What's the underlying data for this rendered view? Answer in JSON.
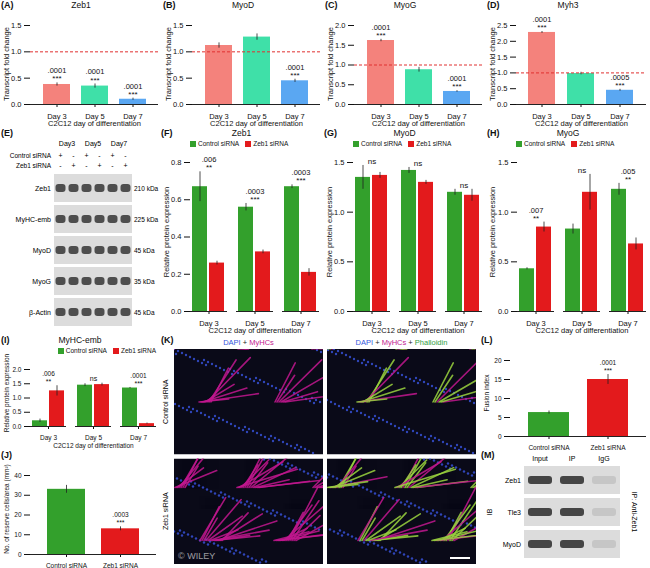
{
  "chart_data": [
    {
      "panel": "(A)",
      "type": "bar",
      "title": "Zeb1",
      "x_label": "C2C12 day of differentiation",
      "y_label": "Transcript fold change",
      "categories": [
        "Day 3",
        "Day 5",
        "Day 7"
      ],
      "values": [
        0.38,
        0.35,
        0.1
      ],
      "errors": [
        0.03,
        0.04,
        0.02
      ],
      "colors": [
        "#f4827c",
        "#3fe0a8",
        "#5aa7f2"
      ],
      "p_labels": [
        ".0001",
        ".0001",
        ".0001"
      ],
      "stars": [
        "***",
        "***",
        "***"
      ],
      "reference_line": 1,
      "ylim": [
        0,
        1.5
      ],
      "yticks": [
        {
          "value": 0,
          "label": "0.0"
        },
        0.5,
        {
          "value": 1,
          "label": "1.0"
        },
        1.5
      ]
    },
    {
      "panel": "(B)",
      "type": "bar",
      "title": "MyoD",
      "x_label": "C2C12 day of differentiation",
      "y_label": "Transcript fold change",
      "categories": [
        "Day 3",
        "Day 5",
        "Day 7"
      ],
      "values": [
        1.12,
        1.28,
        0.45
      ],
      "errors": [
        0.05,
        0.06,
        0.03
      ],
      "colors": [
        "#f4827c",
        "#3fe0a8",
        "#5aa7f2"
      ],
      "p_labels": [
        null,
        null,
        ".0001"
      ],
      "stars": [
        null,
        null,
        "***"
      ],
      "reference_line": 1,
      "ylim": [
        0,
        1.5
      ],
      "yticks": [
        {
          "value": 0,
          "label": "0.0"
        },
        0.5,
        {
          "value": 1,
          "label": "1.0"
        },
        1.5
      ]
    },
    {
      "panel": "(C)",
      "type": "bar",
      "title": "MyoG",
      "x_label": "C2C12 day of differentiation",
      "y_label": "Transcript fold change",
      "categories": [
        "Day 3",
        "Day 5",
        "Day 7"
      ],
      "values": [
        1.62,
        0.88,
        0.33
      ],
      "errors": [
        0.03,
        0.06,
        0.02
      ],
      "colors": [
        "#f4827c",
        "#3fe0a8",
        "#5aa7f2"
      ],
      "p_labels": [
        ".0001",
        null,
        ".0001"
      ],
      "stars": [
        "***",
        null,
        "***"
      ],
      "reference_line": 1,
      "ylim": [
        0,
        2
      ],
      "yticks": [
        {
          "value": 0,
          "label": "0.0"
        },
        0.5,
        {
          "value": 1,
          "label": "1.0"
        },
        1.5,
        {
          "value": 2,
          "label": "2.0"
        }
      ]
    },
    {
      "panel": "(D)",
      "type": "bar",
      "title": "Myh3",
      "x_label": "C2C12 day of differentiation",
      "y_label": "Transcript fold change",
      "categories": [
        "Day 3",
        "Day 5",
        "Day 7"
      ],
      "values": [
        2.28,
        0.98,
        0.45
      ],
      "errors": [
        0.03,
        0.04,
        0.03
      ],
      "colors": [
        "#f4827c",
        "#3fe0a8",
        "#5aa7f2"
      ],
      "p_labels": [
        ".0001",
        null,
        ".0005"
      ],
      "stars": [
        "***",
        null,
        "***"
      ],
      "reference_line": 1,
      "ylim": [
        0,
        2.5
      ],
      "yticks": [
        {
          "value": 0,
          "label": "0.0"
        },
        0.5,
        {
          "value": 1,
          "label": "1.0"
        },
        1.5,
        {
          "value": 2,
          "label": "2.0"
        },
        2.5
      ]
    },
    {
      "panel": "(F)",
      "type": "bar",
      "title": "Zeb1",
      "x_label": "C2C12 day of differentiation",
      "y_label": "Relative protein expression",
      "categories": [
        "Day 3",
        "Day 5",
        "Day 7"
      ],
      "legend": "top-left",
      "series": [
        {
          "name": "Control siRNA",
          "color": "#33a02c",
          "values": [
            0.67,
            0.56,
            0.67
          ],
          "errors": [
            0.08,
            0.02,
            0.01
          ]
        },
        {
          "name": "Zeb1 siRNA",
          "color": "#e31a1c",
          "values": [
            0.26,
            0.32,
            0.21
          ],
          "errors": [
            0.01,
            0.01,
            0.02
          ]
        }
      ],
      "p_labels": [
        ".006",
        ".0003",
        ".0003"
      ],
      "stars": [
        "**",
        "***",
        "***"
      ],
      "ylim": [
        0,
        0.8
      ],
      "yticks": [
        {
          "value": 0,
          "label": "0.0"
        },
        0.2,
        0.4,
        0.6,
        0.8
      ]
    },
    {
      "panel": "(G)",
      "type": "bar",
      "title": "MyoD",
      "x_label": "C2C12 day of differentiation",
      "y_label": "Relative protein expression",
      "categories": [
        "Day 3",
        "Day 5",
        "Day 7"
      ],
      "legend": "top-left",
      "series": [
        {
          "name": "Control siRNA",
          "color": "#33a02c",
          "values": [
            1.35,
            1.42,
            1.2
          ],
          "errors": [
            0.12,
            0.03,
            0.03
          ]
        },
        {
          "name": "Zeb1 siRNA",
          "color": "#e31a1c",
          "values": [
            1.37,
            1.3,
            1.17
          ],
          "errors": [
            0.03,
            0.02,
            0.06
          ]
        }
      ],
      "p_labels": [
        null,
        null,
        null
      ],
      "stars": [
        "ns",
        "ns",
        "ns"
      ],
      "ylim": [
        0,
        1.5
      ],
      "yticks": [
        {
          "value": 0,
          "label": "0.0"
        },
        0.5,
        {
          "value": 1,
          "label": "1.0"
        },
        1.5
      ]
    },
    {
      "panel": "(H)",
      "type": "bar",
      "title": "MyoG",
      "x_label": "C2C12 day of differentiation",
      "y_label": "Relative protein expression",
      "categories": [
        "Day 3",
        "Day 5",
        "Day 7"
      ],
      "legend": "top-left",
      "series": [
        {
          "name": "Control siRNA",
          "color": "#33a02c",
          "values": [
            0.43,
            0.83,
            1.23
          ],
          "errors": [
            0.01,
            0.05,
            0.06
          ]
        },
        {
          "name": "Zeb1 siRNA",
          "color": "#e31a1c",
          "values": [
            0.85,
            1.2,
            0.68
          ],
          "errors": [
            0.05,
            0.18,
            0.06
          ]
        }
      ],
      "p_labels": [
        ".007",
        null,
        ".005"
      ],
      "stars": [
        "**",
        "ns",
        "**"
      ],
      "ylim": [
        0,
        1.5
      ],
      "yticks": [
        {
          "value": 0,
          "label": "0.0"
        },
        0.5,
        {
          "value": 1,
          "label": "1.0"
        },
        1.5
      ]
    },
    {
      "panel": "(I)",
      "type": "bar",
      "title": "MyHC-emb",
      "x_label": "C2C12 day of differentiation",
      "y_label": "Relative protein expression",
      "categories": [
        "Day 3",
        "Day 5",
        "Day 7"
      ],
      "legend": "top-right",
      "series": [
        {
          "name": "Control siRNA",
          "color": "#33a02c",
          "values": [
            0.2,
            1.45,
            1.35
          ],
          "errors": [
            0.06,
            0.05,
            0.02
          ]
        },
        {
          "name": "Zeb1 siRNA",
          "color": "#e31a1c",
          "values": [
            1.25,
            1.47,
            0.1
          ],
          "errors": [
            0.18,
            0.05,
            0.02
          ]
        }
      ],
      "p_labels": [
        ".006",
        null,
        ".0001"
      ],
      "stars": [
        "**",
        "ns",
        "***"
      ],
      "ylim": [
        0,
        2
      ],
      "yticks": [
        {
          "value": 0,
          "label": "0.0"
        },
        0.5,
        {
          "value": 1,
          "label": "1.0"
        },
        1.5,
        {
          "value": 2,
          "label": "2.0"
        }
      ]
    },
    {
      "panel": "(J)",
      "type": "bar",
      "y_label": "No. of reserve cells/area (mm²)",
      "categories": [
        "Control siRNA",
        "Zeb1 siRNA"
      ],
      "values": [
        33,
        13
      ],
      "errors": [
        2,
        1
      ],
      "colors": [
        "#33a02c",
        "#e31a1c"
      ],
      "p_labels": [
        null,
        ".0003"
      ],
      "stars": [
        null,
        "***"
      ],
      "ylim": [
        0,
        40
      ],
      "yticks": [
        0,
        10,
        20,
        30,
        40
      ]
    },
    {
      "panel": "(L)",
      "type": "bar",
      "y_label": "Fusion index",
      "categories": [
        "Control siRNA",
        "Zeb1 siRNA"
      ],
      "values": [
        6.3,
        15
      ],
      "errors": [
        0.4,
        1.3
      ],
      "colors": [
        "#33a02c",
        "#e31a1c"
      ],
      "p_labels": [
        null,
        ".0001"
      ],
      "stars": [
        null,
        "***"
      ],
      "ylim": [
        0,
        20
      ],
      "yticks": [
        0,
        5,
        10,
        15,
        20
      ]
    }
  ],
  "western_blot": {
    "panel": "(E)",
    "lane_groups": [
      "Day3",
      "Day5",
      "Day7"
    ],
    "conditions": [
      {
        "name": "Control siRNA",
        "signs": [
          "+",
          "-",
          "+",
          "-",
          "+",
          "-"
        ]
      },
      {
        "name": "Zeb1 siRNA",
        "signs": [
          "-",
          "+",
          "-",
          "+",
          "-",
          "+"
        ]
      }
    ],
    "bands": [
      {
        "name": "Zeb1",
        "size": "210 kDa"
      },
      {
        "name": "MyHC-emb",
        "size": "225 kDa"
      },
      {
        "name": "MyoD",
        "size": "45 kDa"
      },
      {
        "name": "MyoG",
        "size": "35 kDa"
      },
      {
        "name": "β-Actin",
        "size": "45 kDa"
      }
    ]
  },
  "micrograph": {
    "panel": "(K)",
    "columns": [
      "DAPI + MyHCs",
      "DAPI + MyHCs + Phalloidin"
    ],
    "rows": [
      "Control siRNA",
      "Zeb1 siRNA"
    ]
  },
  "co_ip_blot": {
    "panel": "(M)",
    "lanes": [
      "Input",
      "IP",
      "IgG"
    ],
    "left_label": "IB",
    "right_label": "IP: Anti-Zeb1",
    "bands": [
      "Zeb1",
      "Tle3",
      "MyoD"
    ]
  },
  "watermark": "© WILEY"
}
